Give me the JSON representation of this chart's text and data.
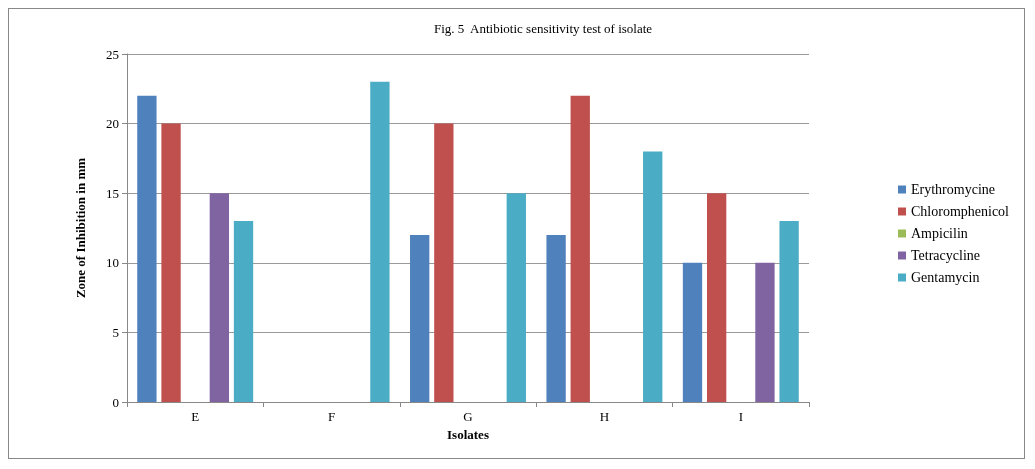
{
  "chart_data": {
    "type": "bar",
    "title": "Fig. 5  Antibiotic sensitivity test of isolate",
    "xlabel": "Isolates",
    "ylabel": "Zone of Inhibition in mm",
    "categories": [
      "E",
      "F",
      "G",
      "H",
      "I"
    ],
    "series": [
      {
        "name": "Erythromycine",
        "color": "#4f81bd",
        "values": [
          22,
          0,
          12,
          12,
          10
        ]
      },
      {
        "name": "Chloromphenicol",
        "color": "#c0504d",
        "values": [
          20,
          0,
          20,
          22,
          15
        ]
      },
      {
        "name": "Ampicilin",
        "color": "#9bbb59",
        "values": [
          0,
          0,
          0,
          0,
          0
        ]
      },
      {
        "name": "Tetracycline",
        "color": "#8064a2",
        "values": [
          15,
          0,
          0,
          0,
          10
        ]
      },
      {
        "name": "Gentamycin",
        "color": "#4bacc6",
        "values": [
          13,
          23,
          15,
          18,
          13
        ]
      }
    ],
    "ylim": [
      0,
      25
    ],
    "yticks": [
      0,
      5,
      10,
      15,
      20,
      25
    ],
    "grid": "y",
    "legend": "right"
  }
}
